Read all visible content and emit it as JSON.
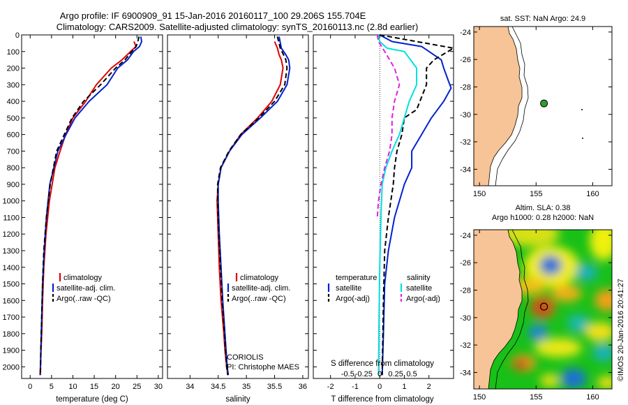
{
  "page_title_line1": "Argo profile: IF 6900909_91 15-Jan-2016 20160117_100 29.206S 155.704E",
  "page_title_line2": "Climatology: CARS2009. Satellite-adjusted climatology: synTS_20160113.nc (2.8d earlier)",
  "colors": {
    "climatology": "#e00000",
    "satellite": "#0020d0",
    "argo": "#000000",
    "satellite_salinity": "#00e0e0",
    "argo_salinity": "#e020e0",
    "land": "#f6c496"
  },
  "chart_data": [
    {
      "type": "line",
      "id": "temperature",
      "xlabel": "temperature (deg C)",
      "ylabel": "",
      "xlim": [
        -2,
        31
      ],
      "ylim": [
        2070,
        0
      ],
      "xticks": [
        "0",
        "5",
        "10",
        "15",
        "20",
        "25",
        "30"
      ],
      "xtick_values": [
        0,
        5,
        10,
        15,
        20,
        25,
        30
      ],
      "yticks": [
        "0",
        "100",
        "200",
        "300",
        "400",
        "500",
        "600",
        "700",
        "800",
        "900",
        "1000",
        "1100",
        "1200",
        "1300",
        "1400",
        "1500",
        "1600",
        "1700",
        "1800",
        "1900",
        "2000"
      ],
      "ytick_values": [
        0,
        100,
        200,
        300,
        400,
        500,
        600,
        700,
        800,
        900,
        1000,
        1100,
        1200,
        1300,
        1400,
        1500,
        1600,
        1700,
        1800,
        1900,
        2000
      ],
      "legend": [
        "climatology",
        "satellite-adj. clim.",
        "Argo(..raw -QC)"
      ],
      "series": [
        {
          "name": "climatology",
          "style": "solid",
          "color_key": "climatology",
          "x": [
            24.3,
            24.8,
            23.5,
            21.5,
            19.0,
            15.5,
            13.0,
            10.0,
            8.3,
            7.0,
            5.8,
            4.5,
            3.7,
            3.2,
            2.9,
            2.7,
            2.4,
            2.3
          ],
          "y": [
            40,
            70,
            100,
            150,
            200,
            300,
            400,
            500,
            600,
            700,
            800,
            1000,
            1200,
            1400,
            1600,
            1800,
            2000,
            2050
          ]
        },
        {
          "name": "satellite-adj. clim.",
          "style": "solid",
          "color_key": "satellite",
          "x": [
            25.9,
            26.1,
            25.6,
            24.2,
            22.8,
            20.5,
            18.0,
            13.8,
            10.5,
            8.4,
            6.5,
            4.6,
            3.8,
            3.3,
            2.9,
            2.7,
            2.5,
            2.4
          ],
          "y": [
            10,
            40,
            70,
            100,
            150,
            200,
            300,
            400,
            500,
            600,
            700,
            900,
            1100,
            1300,
            1500,
            1700,
            1900,
            2050
          ]
        },
        {
          "name": "Argo(..raw -QC)",
          "style": "dash",
          "color_key": "argo",
          "x": [
            25.5,
            25.2,
            24.8,
            23.8,
            22.2,
            20.0,
            16.5,
            12.5,
            9.8,
            8.0,
            6.2,
            4.7,
            3.8,
            3.2,
            2.9,
            2.7,
            2.5,
            2.4
          ],
          "y": [
            10,
            40,
            70,
            100,
            150,
            200,
            300,
            400,
            500,
            600,
            700,
            900,
            1100,
            1300,
            1500,
            1700,
            1900,
            2050
          ]
        }
      ]
    },
    {
      "type": "line",
      "id": "salinity",
      "xlabel": "salinity",
      "xlim": [
        33.6,
        36.1
      ],
      "ylim": [
        2070,
        0
      ],
      "xticks": [
        "34",
        "34.5",
        "35",
        "35.5",
        "36"
      ],
      "xtick_values": [
        34,
        34.5,
        35,
        35.5,
        36
      ],
      "legend": [
        "climatology",
        "satellite-adj. clim.",
        "Argo(..raw -QC)"
      ],
      "annotations": [
        "CORIOLIS",
        "PI: Christophe MAES"
      ],
      "series": [
        {
          "name": "climatology",
          "style": "solid",
          "color_key": "climatology",
          "x": [
            35.5,
            35.55,
            35.58,
            35.62,
            35.65,
            35.6,
            35.45,
            35.2,
            34.9,
            34.7,
            34.55,
            34.5,
            34.48,
            34.5,
            34.52,
            34.55,
            34.6,
            34.62,
            34.65,
            34.67
          ],
          "y": [
            40,
            80,
            120,
            150,
            200,
            300,
            400,
            500,
            600,
            700,
            800,
            900,
            1000,
            1200,
            1400,
            1600,
            1800,
            1900,
            2000,
            2050
          ]
        },
        {
          "name": "satellite-adj. clim.",
          "style": "solid",
          "color_key": "satellite",
          "x": [
            35.58,
            35.62,
            35.7,
            35.75,
            35.77,
            35.72,
            35.55,
            35.25,
            34.92,
            34.7,
            34.55,
            34.5,
            34.5,
            34.52,
            34.55,
            34.58,
            34.62,
            34.64,
            34.66,
            34.68
          ],
          "y": [
            10,
            80,
            120,
            150,
            200,
            300,
            400,
            500,
            600,
            700,
            800,
            900,
            1000,
            1200,
            1400,
            1600,
            1800,
            1900,
            2000,
            2050
          ]
        },
        {
          "name": "Argo(..raw -QC)",
          "style": "dash",
          "color_key": "argo",
          "x": [
            35.55,
            35.6,
            35.66,
            35.7,
            35.72,
            35.68,
            35.5,
            35.22,
            34.9,
            34.69,
            34.54,
            34.49,
            34.49,
            34.51,
            34.54,
            34.57,
            34.61,
            34.63,
            34.65,
            34.67
          ],
          "y": [
            10,
            80,
            120,
            150,
            200,
            300,
            400,
            500,
            600,
            700,
            800,
            900,
            1000,
            1200,
            1400,
            1600,
            1800,
            1900,
            2000,
            2050
          ]
        }
      ]
    },
    {
      "type": "line",
      "id": "difference",
      "xlabel": "T difference from climatology",
      "xlabel2": "S difference from climatology",
      "xlim": [
        -2.7,
        3.0
      ],
      "ylim": [
        2070,
        0
      ],
      "xticks": [
        "-2",
        "-1",
        "0",
        "1",
        "2"
      ],
      "xtick_values": [
        -2,
        -1,
        0,
        1,
        2
      ],
      "s_ticks": [
        "-0.5",
        "-0.25",
        "0",
        "0.25",
        "0.5"
      ],
      "legend_temperature_title": "temperature",
      "legend_salinity_title": "salinity",
      "legend": [
        "satellite",
        "Argo(-adj)",
        "satellite",
        "Argo(-adj)"
      ],
      "series": [
        {
          "name": "temperature satellite",
          "style": "solid",
          "color_key": "satellite",
          "x": [
            0.0,
            0.5,
            1.7,
            2.5,
            2.6,
            2.8,
            2.9,
            2.6,
            2.1,
            1.7,
            1.3,
            1.3,
            1.0,
            0.6,
            0.35,
            0.2,
            0.15,
            0.1
          ],
          "y": [
            0,
            40,
            70,
            150,
            200,
            280,
            320,
            400,
            500,
            600,
            700,
            800,
            900,
            1100,
            1300,
            1500,
            1800,
            2050
          ]
        },
        {
          "name": "temperature Argo(-adj)",
          "style": "dash",
          "color_key": "argo",
          "x": [
            0.0,
            1.5,
            3.0,
            2.2,
            1.9,
            1.9,
            1.5,
            1.0,
            0.9,
            0.7,
            0.6,
            0.55,
            0.35,
            0.2,
            0.15,
            0.1
          ],
          "y": [
            0,
            40,
            80,
            150,
            200,
            300,
            450,
            500,
            600,
            700,
            800,
            900,
            1100,
            1300,
            1600,
            2050
          ]
        },
        {
          "name": "salinity satellite",
          "style": "solid",
          "color_key": "satellite_salinity",
          "x": [
            -0.05,
            0.0,
            0.3,
            1.0,
            1.5,
            1.5,
            1.2,
            1.0,
            0.8,
            0.5,
            0.25,
            0.1,
            0.05,
            0.0,
            -0.03,
            -0.05
          ],
          "y": [
            0,
            40,
            80,
            100,
            200,
            300,
            400,
            500,
            600,
            700,
            800,
            900,
            1100,
            1400,
            1700,
            2050
          ]
        },
        {
          "name": "salinity Argo(-adj)",
          "style": "dash",
          "color_key": "argo_salinity",
          "x": [
            -0.1,
            -0.05,
            0.2,
            0.6,
            0.8,
            0.6,
            0.5,
            0.5,
            0.4,
            0.2,
            0.05,
            -0.05,
            -0.1
          ],
          "y": [
            0,
            40,
            100,
            200,
            300,
            400,
            500,
            600,
            700,
            800,
            900,
            1000,
            1100
          ]
        }
      ]
    },
    {
      "type": "scatter",
      "id": "sst_map",
      "title": "sat. SST: NaN Argo: 24.9",
      "xlim": [
        149.5,
        161.7
      ],
      "ylim": [
        -35.2,
        -23.6
      ],
      "xticks": [
        "150",
        "155",
        "160"
      ],
      "xtick_values": [
        150,
        155,
        160
      ],
      "yticks": [
        "-24",
        "-26",
        "-28",
        "-30",
        "-32",
        "-34"
      ],
      "ytick_values": [
        -24,
        -26,
        -28,
        -30,
        -32,
        -34
      ],
      "points": [
        {
          "name": "argo position",
          "x": 155.7,
          "y": -29.2
        }
      ]
    },
    {
      "type": "heatmap",
      "id": "sla_map",
      "title_line1": "Altim. SLA: 0.38",
      "title_line2": "Argo h1000: 0.28 h2000: NaN",
      "xlim": [
        149.5,
        161.7
      ],
      "ylim": [
        -35.2,
        -23.6
      ],
      "xticks": [
        "150",
        "155",
        "160"
      ],
      "xtick_values": [
        150,
        155,
        160
      ],
      "yticks": [
        "-24",
        "-26",
        "-28",
        "-30",
        "-32",
        "-34"
      ],
      "ytick_values": [
        -24,
        -26,
        -28,
        -30,
        -32,
        -34
      ],
      "points": [
        {
          "name": "argo position",
          "x": 155.7,
          "y": -29.2
        }
      ],
      "credit": "©IMOS 20-Jan-2016 20:41:27"
    }
  ]
}
